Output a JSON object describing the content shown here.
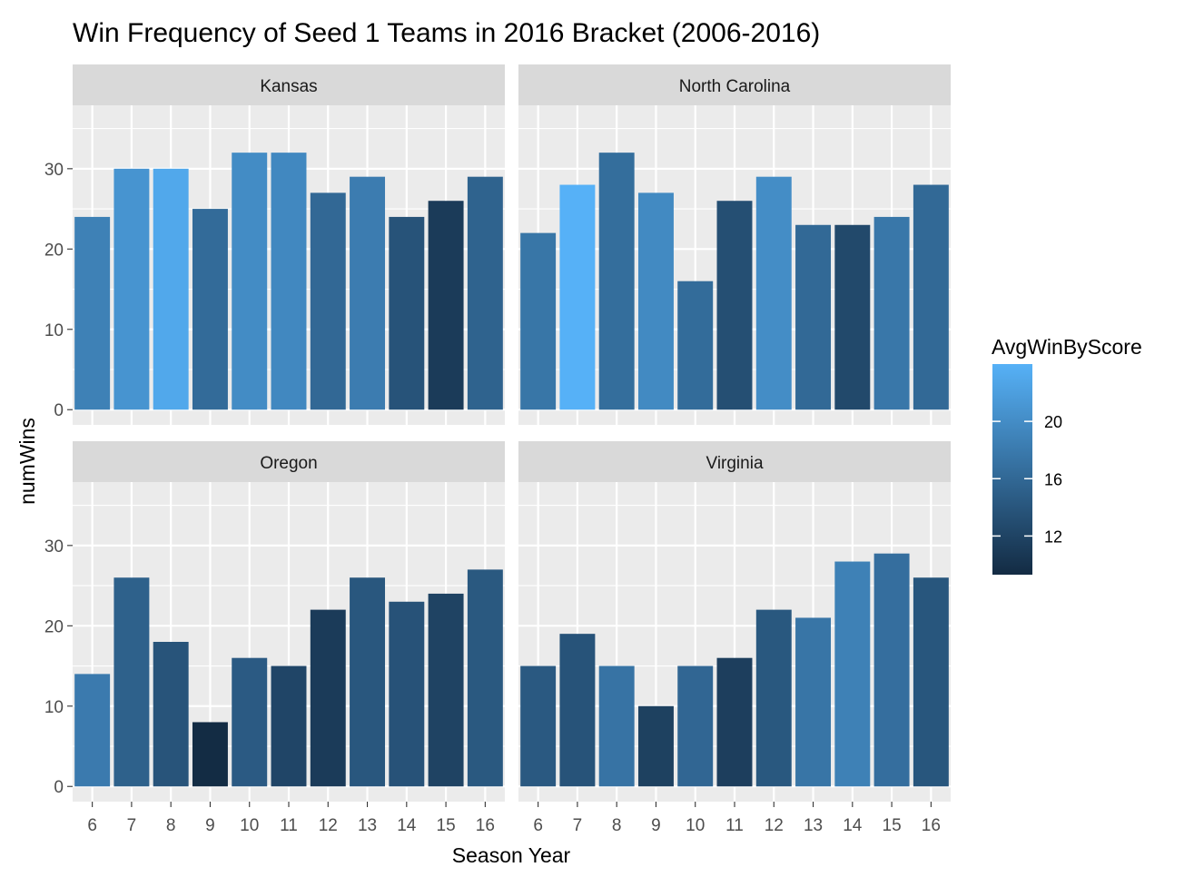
{
  "chart_data": {
    "type": "bar",
    "title": "Win Frequency of Seed 1 Teams in 2016 Bracket (2006-2016)",
    "xlabel": "Season Year",
    "ylabel": "numWins",
    "ylim": [
      0,
      36
    ],
    "yticks": [
      0,
      10,
      20,
      30
    ],
    "categories": [
      "6",
      "7",
      "8",
      "9",
      "10",
      "11",
      "12",
      "13",
      "14",
      "15",
      "16"
    ],
    "grid": true,
    "legend": {
      "title": "AvgWinByScore",
      "position": "right",
      "range": [
        9.3,
        24.0
      ],
      "ticks": [
        12,
        16,
        20
      ],
      "color_low": "#132b43",
      "color_high": "#56b1f7"
    },
    "facets": [
      {
        "name": "Kansas",
        "values": [
          24,
          30,
          30,
          25,
          32,
          32,
          27,
          29,
          24,
          26,
          29
        ],
        "fill": [
          18.7,
          20.8,
          23.0,
          16.3,
          19.9,
          19.5,
          16.0,
          18.2,
          13.7,
          11.1,
          15.4
        ]
      },
      {
        "name": "North Carolina",
        "values": [
          22,
          28,
          32,
          27,
          16,
          26,
          29,
          23,
          23,
          24,
          28
        ],
        "fill": [
          17.5,
          24.0,
          16.6,
          19.7,
          16.4,
          13.2,
          20.0,
          16.1,
          12.6,
          17.6,
          16.1
        ]
      },
      {
        "name": "Oregon",
        "values": [
          14,
          26,
          18,
          8,
          16,
          15,
          22,
          26,
          23,
          24,
          27
        ],
        "fill": [
          18.0,
          15.2,
          13.8,
          9.4,
          14.5,
          12.2,
          11.1,
          14.1,
          13.6,
          11.9,
          14.3
        ]
      },
      {
        "name": "Virginia",
        "values": [
          15,
          19,
          15,
          10,
          15,
          16,
          22,
          21,
          28,
          29,
          26
        ],
        "fill": [
          14.4,
          13.7,
          17.2,
          11.7,
          15.8,
          11.4,
          14.2,
          17.4,
          18.7,
          16.7,
          14.0
        ]
      }
    ]
  }
}
